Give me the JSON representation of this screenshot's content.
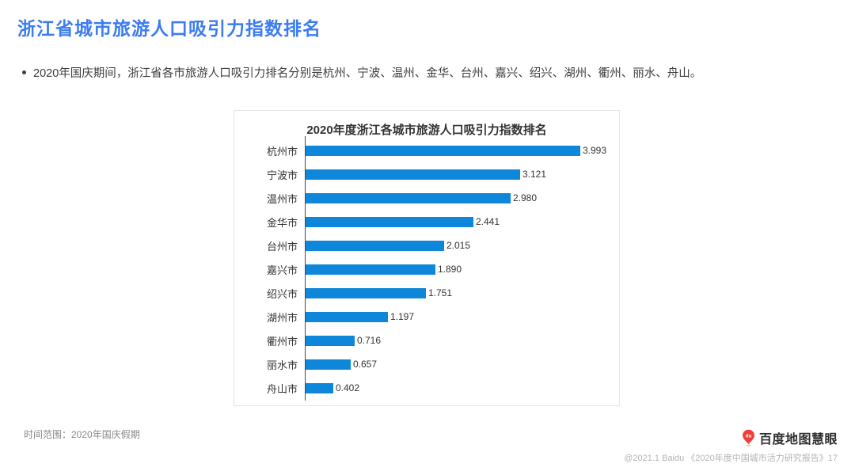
{
  "page": {
    "title": "浙江省城市旅游人口吸引力指数排名",
    "bullet": "2020年国庆期间，浙江省各市旅游人口吸引力排名分别是杭州、宁波、温州、金华、台州、嘉兴、绍兴、湖州、衢州、丽水、舟山。"
  },
  "chart_data": {
    "type": "bar",
    "orientation": "horizontal",
    "title": "2020年度浙江各城市旅游人口吸引力指数排名",
    "categories": [
      "杭州市",
      "宁波市",
      "温州市",
      "金华市",
      "台州市",
      "嘉兴市",
      "绍兴市",
      "湖州市",
      "衢州市",
      "丽水市",
      "舟山市"
    ],
    "values": [
      3.993,
      3.121,
      2.98,
      2.441,
      2.015,
      1.89,
      1.751,
      1.197,
      0.716,
      0.657,
      0.402
    ],
    "value_labels": [
      "3.993",
      "3.121",
      "2.980",
      "2.441",
      "2.015",
      "1.890",
      "1.751",
      "1.197",
      "0.716",
      "0.657",
      "0.402"
    ],
    "xlabel": "",
    "ylabel": "",
    "xlim": [
      0,
      4.2
    ],
    "grid": false,
    "legend": false,
    "bar_color": "#0e86d9",
    "data_labels": true
  },
  "footer": {
    "time_range": "时间范围：2020年国庆假期",
    "brand_name": "百度地图慧眼",
    "brand_pin_text": "du",
    "credit": "@2021.1 Baidu 《2020年度中国城市活力研究报告》17"
  },
  "colors": {
    "title_blue": "#3b7cf0",
    "bar_blue": "#0e86d9",
    "brand_red": "#ee3d38",
    "axis_gray": "#4a4a4a"
  }
}
